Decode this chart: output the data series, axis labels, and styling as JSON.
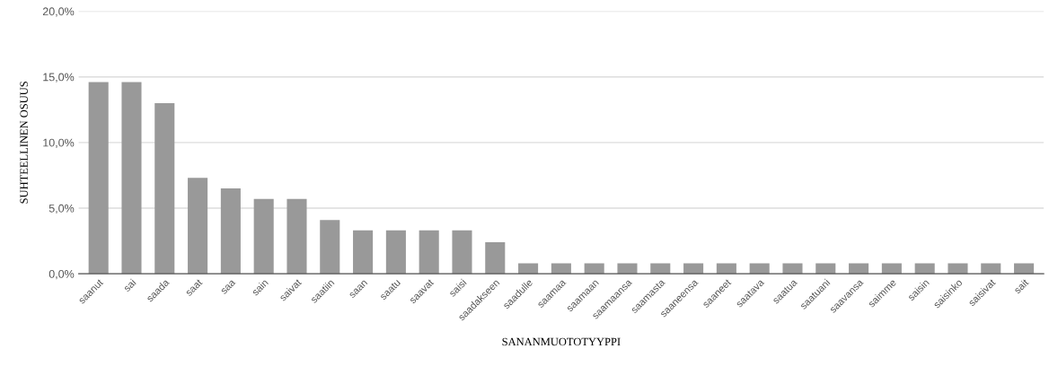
{
  "chart_data": {
    "type": "bar",
    "xlabel": "SANANMUOTOTYYPPI",
    "ylabel": "SUHTEELLINEN OSUUS",
    "categories": [
      "saanut",
      "sai",
      "saada",
      "saat",
      "saa",
      "sain",
      "saivat",
      "saatiin",
      "saan",
      "saatu",
      "saavat",
      "saisi",
      "saadakseen",
      "saadulle",
      "saamaa",
      "saamaan",
      "saamaansa",
      "saamasta",
      "saaneensa",
      "saaneet",
      "saatava",
      "saatua",
      "saatuani",
      "saavansa",
      "saimme",
      "saisin",
      "saisinko",
      "saisivat",
      "sait"
    ],
    "values": [
      14.6,
      14.6,
      13.0,
      7.3,
      6.5,
      5.7,
      5.7,
      4.1,
      3.3,
      3.3,
      3.3,
      3.3,
      2.4,
      0.8,
      0.8,
      0.8,
      0.8,
      0.8,
      0.8,
      0.8,
      0.8,
      0.8,
      0.8,
      0.8,
      0.8,
      0.8,
      0.8,
      0.8,
      0.8
    ],
    "color": "#999999",
    "ylim": [
      0,
      20
    ],
    "yticks": [
      {
        "value": 0,
        "label": "0,0%"
      },
      {
        "value": 5,
        "label": "5,0%"
      },
      {
        "value": 10,
        "label": "10,0%"
      },
      {
        "value": 15,
        "label": "15,0%"
      },
      {
        "value": 20,
        "label": "20,0%"
      }
    ],
    "grid": "y",
    "legend": false
  }
}
